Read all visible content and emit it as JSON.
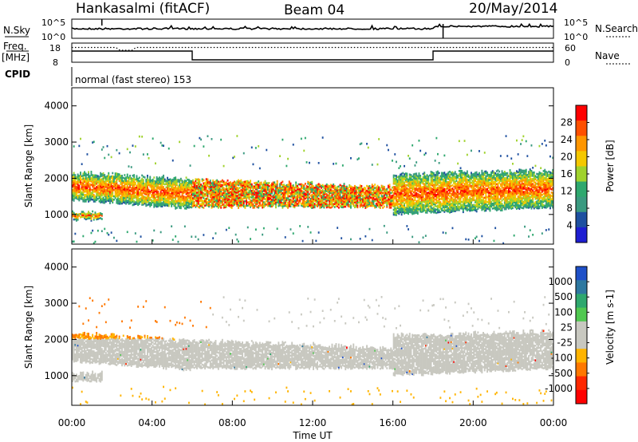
{
  "header": {
    "station": "Hankasalmi (fitACF)",
    "beam": "Beam 04",
    "date": "20/May/2014"
  },
  "status_panels": {
    "noise_left_label": "N.Sky",
    "noise_right_label": "N.Search",
    "noise_ticks_left": [
      "10^5",
      "10^0"
    ],
    "noise_ticks_right": [
      "10^5",
      "10^0"
    ],
    "freq_label_top": "Freq.",
    "freq_label_unit": "[MHz]",
    "freq_ticks": [
      "18",
      "8"
    ],
    "nave_label": "Nave",
    "nave_ticks": [
      "60",
      "0"
    ],
    "cpid_label": "CPID",
    "cpid_text": "normal (fast stereo) 153"
  },
  "chart_data": [
    {
      "type": "heatmap",
      "name": "power-panel",
      "title": "",
      "xlabel": "",
      "ylabel": "Slant Range [km]",
      "xlim": [
        0,
        24
      ],
      "ylim": [
        180,
        4500
      ],
      "yticks": [
        "1000",
        "2000",
        "3000",
        "4000"
      ],
      "colorbar": {
        "label": "Power [dB]",
        "ticks": [
          "28",
          "24",
          "20",
          "16",
          "12",
          "8",
          "4"
        ],
        "colors": [
          "#ff0000",
          "#ff5000",
          "#ff9600",
          "#f5c800",
          "#a0d22d",
          "#2ea86e",
          "#3a9a80",
          "#1e50a0",
          "#1e1ed2"
        ]
      },
      "scatter_bands": [
        {
          "t0": 0,
          "t1": 6,
          "r_top": [
            2150,
            1950
          ],
          "r_bot": [
            1400,
            1150
          ],
          "core": "red"
        },
        {
          "t0": 0,
          "t1": 1.5,
          "r_top": [
            1050,
            1050
          ],
          "r_bot": [
            850,
            850
          ],
          "core": "red"
        },
        {
          "t0": 6,
          "t1": 16,
          "r_top": [
            1950,
            1750
          ],
          "r_bot": [
            1200,
            1200
          ],
          "core": "mixed"
        },
        {
          "t0": 16,
          "t1": 24,
          "r_top": [
            2100,
            2200
          ],
          "r_bot": [
            1000,
            1200
          ],
          "core": "red"
        }
      ]
    },
    {
      "type": "heatmap",
      "name": "velocity-panel",
      "title": "",
      "xlabel": "Time UT",
      "ylabel": "Slant Range [km]",
      "xlim": [
        0,
        24
      ],
      "ylim": [
        180,
        4500
      ],
      "yticks": [
        "1000",
        "2000",
        "3000",
        "4000"
      ],
      "xticks": [
        "00:00",
        "04:00",
        "08:00",
        "12:00",
        "16:00",
        "20:00",
        "00:00"
      ],
      "colorbar": {
        "label": "Velocity [m s-1]",
        "ticks": [
          "1000",
          "500",
          "100",
          "25",
          "-25",
          "-100",
          "-500",
          "-1000"
        ],
        "colors": [
          "#1e50c8",
          "#2e78a0",
          "#2ea86e",
          "#50c850",
          "#c8c8c0",
          "#c8c8c0",
          "#ffb400",
          "#ff7800",
          "#ff2800",
          "#ff0000"
        ]
      }
    }
  ]
}
